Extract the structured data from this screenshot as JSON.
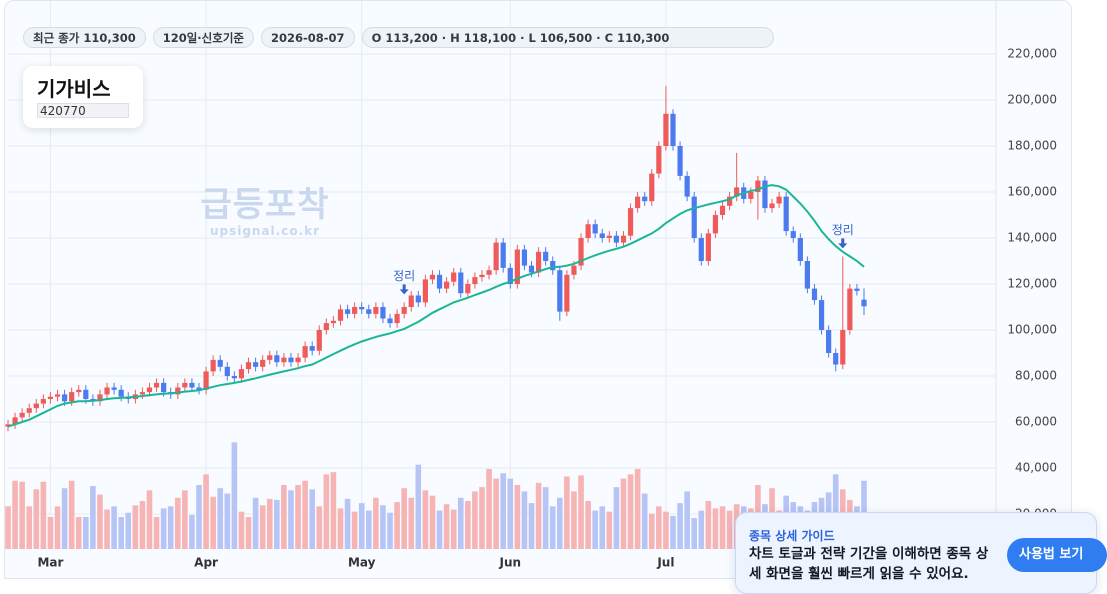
{
  "header": {
    "chips": [
      "최근 종가 110,300",
      "120일·신호기준",
      "2026-08-07",
      "O 113,200 · H 118,100 · L 106,500 · C 110,300"
    ],
    "name": "기가비스",
    "code": "420770"
  },
  "watermark": {
    "brand": "급등포착",
    "url": "upsignal.co.kr"
  },
  "guide": {
    "title": "종목 상세 가이드",
    "body": "차트 토글과 전략 기간을 이해하면 종목 상세 화면을 훨씬 빠르게 읽을 수 있어요.",
    "button": "사용법 보기"
  },
  "chart_data": {
    "type": "candlestick",
    "categories": [
      null,
      null,
      null,
      null,
      null,
      null,
      "Mar",
      null,
      null,
      null,
      null,
      null,
      null,
      null,
      null,
      null,
      null,
      null,
      null,
      null,
      null,
      null,
      null,
      null,
      null,
      null,
      null,
      null,
      "Apr",
      null,
      null,
      null,
      null,
      null,
      null,
      null,
      null,
      null,
      null,
      null,
      null,
      null,
      null,
      null,
      null,
      null,
      null,
      null,
      null,
      null,
      "May",
      null,
      null,
      null,
      null,
      null,
      null,
      null,
      null,
      null,
      null,
      null,
      null,
      null,
      null,
      null,
      null,
      null,
      null,
      null,
      null,
      "Jun",
      null,
      null,
      null,
      null,
      null,
      null,
      null,
      null,
      null,
      null,
      null,
      null,
      null,
      null,
      null,
      null,
      null,
      null,
      null,
      null,
      null,
      "Jul",
      null,
      null,
      null,
      null,
      null,
      null,
      null,
      null,
      null,
      null,
      null,
      null,
      null,
      null,
      null,
      null,
      null,
      null,
      null,
      null,
      null,
      null,
      null,
      null,
      null,
      null,
      null,
      null
    ],
    "open": [
      58000,
      59000,
      62000,
      64000,
      66000,
      68000,
      70000,
      71000,
      72000,
      69000,
      73000,
      74000,
      70000,
      69000,
      72000,
      75000,
      74000,
      71000,
      70000,
      72000,
      73000,
      75000,
      77000,
      73000,
      72000,
      75000,
      77000,
      75000,
      74000,
      82000,
      87000,
      84000,
      80000,
      79000,
      83000,
      86000,
      84000,
      87000,
      89000,
      86000,
      88000,
      86000,
      88000,
      93000,
      91000,
      100000,
      103000,
      104000,
      109000,
      107000,
      110000,
      109000,
      107000,
      110000,
      105000,
      103000,
      107000,
      110000,
      115000,
      112000,
      122000,
      124000,
      118000,
      121000,
      125000,
      116000,
      120000,
      123000,
      124000,
      126000,
      138000,
      127000,
      120000,
      135000,
      128000,
      125000,
      134000,
      130000,
      126000,
      108000,
      124000,
      128000,
      140000,
      146000,
      142000,
      140000,
      141000,
      138000,
      141000,
      153000,
      158000,
      156000,
      168000,
      180000,
      194000,
      180000,
      167000,
      158000,
      140000,
      130000,
      142000,
      150000,
      154000,
      158000,
      162000,
      157000,
      160000,
      165000,
      153000,
      155000,
      158000,
      143000,
      140000,
      130000,
      118000,
      113000,
      100000,
      90000,
      85000,
      100000,
      118000,
      113200
    ],
    "high": [
      61000,
      64000,
      66000,
      68000,
      70000,
      72000,
      73000,
      74000,
      74000,
      75000,
      76000,
      76000,
      72000,
      74000,
      77000,
      77000,
      76000,
      73000,
      74000,
      75000,
      77000,
      79000,
      79000,
      75000,
      77000,
      79000,
      79000,
      77000,
      84000,
      89000,
      89000,
      86000,
      82000,
      85000,
      88000,
      88000,
      89000,
      91000,
      91000,
      90000,
      90000,
      90000,
      95000,
      95000,
      102000,
      105000,
      106000,
      111000,
      111000,
      112000,
      112000,
      111000,
      112000,
      112000,
      107000,
      109000,
      112000,
      117000,
      117000,
      124000,
      126000,
      126000,
      123000,
      127000,
      127000,
      122000,
      125000,
      126000,
      128000,
      140000,
      140000,
      129000,
      137000,
      137000,
      130000,
      136000,
      136000,
      132000,
      128000,
      126000,
      130000,
      142000,
      148000,
      148000,
      144000,
      143000,
      143000,
      143000,
      155000,
      160000,
      160000,
      170000,
      182000,
      206000,
      196000,
      182000,
      169000,
      160000,
      142000,
      144000,
      152000,
      156000,
      160000,
      177000,
      164000,
      162000,
      167000,
      167000,
      157000,
      160000,
      160000,
      145000,
      142000,
      132000,
      120000,
      115000,
      102000,
      92000,
      132000,
      120000,
      120000,
      118100
    ],
    "low": [
      56000,
      57000,
      60000,
      62000,
      64000,
      66000,
      68000,
      69000,
      67000,
      67000,
      71000,
      68000,
      67000,
      67000,
      70000,
      72000,
      69000,
      68000,
      68000,
      70000,
      71000,
      73000,
      71000,
      70000,
      70000,
      73000,
      73000,
      72000,
      72000,
      80000,
      82000,
      78000,
      77000,
      77000,
      81000,
      82000,
      82000,
      85000,
      84000,
      84000,
      84000,
      84000,
      86000,
      89000,
      89000,
      98000,
      101000,
      102000,
      105000,
      105000,
      107000,
      105000,
      105000,
      103000,
      101000,
      101000,
      105000,
      108000,
      110000,
      110000,
      120000,
      116000,
      116000,
      119000,
      114000,
      114000,
      118000,
      121000,
      122000,
      124000,
      125000,
      118000,
      118000,
      126000,
      123000,
      123000,
      128000,
      124000,
      104000,
      106000,
      122000,
      126000,
      138000,
      140000,
      138000,
      138000,
      136000,
      136000,
      139000,
      151000,
      154000,
      154000,
      166000,
      178000,
      178000,
      165000,
      156000,
      138000,
      128000,
      128000,
      140000,
      148000,
      152000,
      156000,
      155000,
      155000,
      148000,
      151000,
      151000,
      153000,
      141000,
      138000,
      128000,
      116000,
      111000,
      98000,
      88000,
      82000,
      83000,
      98000,
      115000,
      106500
    ],
    "close": [
      59000,
      62000,
      64000,
      66000,
      68000,
      70000,
      71000,
      72000,
      69000,
      73000,
      74000,
      70000,
      69000,
      72000,
      75000,
      74000,
      71000,
      70000,
      72000,
      73000,
      75000,
      77000,
      73000,
      72000,
      75000,
      77000,
      75000,
      74000,
      82000,
      87000,
      84000,
      80000,
      79000,
      83000,
      86000,
      84000,
      87000,
      89000,
      86000,
      88000,
      86000,
      88000,
      93000,
      91000,
      100000,
      103000,
      104000,
      109000,
      107000,
      110000,
      109000,
      107000,
      110000,
      105000,
      103000,
      107000,
      110000,
      115000,
      112000,
      122000,
      124000,
      118000,
      121000,
      125000,
      116000,
      120000,
      123000,
      124000,
      126000,
      138000,
      127000,
      120000,
      135000,
      128000,
      125000,
      134000,
      130000,
      126000,
      108000,
      124000,
      128000,
      140000,
      146000,
      142000,
      140000,
      141000,
      138000,
      141000,
      153000,
      158000,
      156000,
      168000,
      180000,
      194000,
      180000,
      167000,
      158000,
      140000,
      130000,
      142000,
      150000,
      154000,
      158000,
      162000,
      157000,
      160000,
      165000,
      153000,
      155000,
      158000,
      143000,
      140000,
      130000,
      118000,
      113000,
      100000,
      90000,
      85000,
      100000,
      118000,
      117000,
      110300
    ],
    "volume": [
      400000,
      640000,
      630000,
      400000,
      560000,
      630000,
      300000,
      400000,
      570000,
      640000,
      300000,
      300000,
      590000,
      510000,
      370000,
      400000,
      300000,
      340000,
      410000,
      450000,
      550000,
      300000,
      380000,
      400000,
      480000,
      550000,
      320000,
      600000,
      700000,
      490000,
      570000,
      520000,
      1000000,
      350000,
      300000,
      480000,
      410000,
      470000,
      460000,
      600000,
      550000,
      600000,
      640000,
      560000,
      400000,
      700000,
      720000,
      380000,
      470000,
      350000,
      430000,
      360000,
      480000,
      410000,
      340000,
      440000,
      570000,
      480000,
      790000,
      550000,
      500000,
      360000,
      420000,
      370000,
      480000,
      450000,
      540000,
      580000,
      750000,
      660000,
      710000,
      660000,
      600000,
      540000,
      430000,
      620000,
      580000,
      400000,
      480000,
      680000,
      540000,
      690000,
      450000,
      360000,
      400000,
      350000,
      580000,
      660000,
      700000,
      750000,
      520000,
      330000,
      400000,
      350000,
      310000,
      430000,
      540000,
      290000,
      360000,
      450000,
      380000,
      400000,
      360000,
      420000,
      400000,
      380000,
      600000,
      420000,
      570000,
      360000,
      500000,
      440000,
      400000,
      360000,
      440000,
      480000,
      530000,
      700000,
      560000,
      460000,
      400000,
      640000
    ],
    "volume_lim": [
      0,
      1200000
    ],
    "ma": [
      58000,
      59000,
      60000,
      61000,
      62500,
      64000,
      65500,
      67000,
      68000,
      68500,
      69000,
      69000,
      69200,
      69500,
      70000,
      70300,
      70500,
      70700,
      71000,
      71300,
      71700,
      72000,
      72300,
      72500,
      72800,
      73200,
      73500,
      73800,
      74500,
      75300,
      76000,
      76500,
      77000,
      77600,
      78300,
      79000,
      79800,
      80600,
      81300,
      82000,
      82700,
      83400,
      84300,
      85000,
      86500,
      88000,
      89500,
      91000,
      92500,
      93800,
      95000,
      96000,
      97000,
      97800,
      98500,
      99500,
      100500,
      102000,
      103500,
      105500,
      107500,
      109000,
      110500,
      112000,
      113000,
      114000,
      115200,
      116300,
      117400,
      118800,
      120000,
      121000,
      122300,
      123500,
      124500,
      125500,
      126500,
      127300,
      127500,
      128000,
      128800,
      130000,
      131300,
      132500,
      133500,
      134500,
      135300,
      136200,
      137500,
      139000,
      140500,
      142000,
      144000,
      146500,
      148500,
      150500,
      152000,
      153000,
      153800,
      154600,
      155300,
      156000,
      156800,
      158500,
      159500,
      160500,
      161000,
      162500,
      163000,
      162500,
      161000,
      158000,
      155000,
      151500,
      147500,
      143000,
      139500,
      136500,
      134000,
      132000,
      130000,
      127500
    ],
    "signals": [
      null,
      null,
      null,
      null,
      null,
      null,
      null,
      null,
      null,
      null,
      null,
      null,
      null,
      null,
      null,
      null,
      null,
      null,
      null,
      null,
      null,
      null,
      null,
      null,
      null,
      null,
      null,
      null,
      null,
      null,
      null,
      null,
      null,
      null,
      null,
      null,
      null,
      null,
      null,
      null,
      null,
      null,
      null,
      null,
      null,
      null,
      null,
      null,
      null,
      null,
      null,
      null,
      null,
      null,
      null,
      null,
      "정리",
      null,
      null,
      null,
      null,
      null,
      null,
      null,
      null,
      null,
      null,
      null,
      null,
      null,
      null,
      null,
      null,
      null,
      null,
      null,
      null,
      null,
      null,
      null,
      null,
      null,
      null,
      null,
      null,
      null,
      null,
      null,
      null,
      null,
      null,
      null,
      null,
      null,
      null,
      null,
      null,
      null,
      null,
      null,
      null,
      null,
      null,
      null,
      null,
      null,
      null,
      null,
      null,
      null,
      null,
      null,
      null,
      null,
      null,
      null,
      null,
      null,
      "정리",
      null,
      null,
      null
    ],
    "ylim": [
      0,
      230000
    ],
    "yticks": [
      {
        "value": 20000,
        "label": "20,000"
      },
      {
        "value": 40000,
        "label": "40,000"
      },
      {
        "value": 60000,
        "label": "60,000"
      },
      {
        "value": 80000,
        "label": "80,000"
      },
      {
        "value": 100000,
        "label": "100,000"
      },
      {
        "value": 120000,
        "label": "120,000"
      },
      {
        "value": 140000,
        "label": "140,000"
      },
      {
        "value": 160000,
        "label": "160,000"
      },
      {
        "value": 180000,
        "label": "180,000"
      },
      {
        "value": 200000,
        "label": "200,000"
      },
      {
        "value": 220000,
        "label": "220,000"
      }
    ],
    "grid": true,
    "colors": {
      "up": "#ef5b5b",
      "down": "#4c7bef",
      "volume_up": "#f6b4b4",
      "volume_down": "#b6c5f6",
      "ma": "#1db597",
      "signal": "#3563c9"
    }
  }
}
